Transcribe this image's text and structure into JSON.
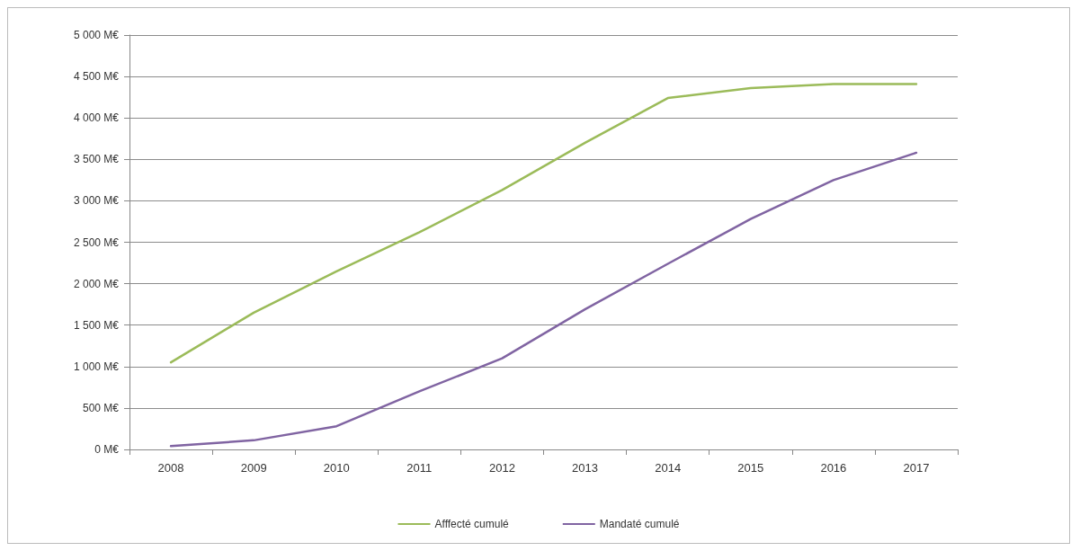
{
  "chart_data": {
    "type": "line",
    "categories": [
      "2008",
      "2009",
      "2010",
      "2011",
      "2012",
      "2013",
      "2014",
      "2015",
      "2016",
      "2017"
    ],
    "series": [
      {
        "name": "Afffecté cumulé",
        "color": "#9bbb59",
        "values": [
          1050,
          1650,
          2150,
          2620,
          3130,
          3700,
          4240,
          4360,
          4410,
          4410
        ]
      },
      {
        "name": "Mandaté cumulé",
        "color": "#8064a2",
        "values": [
          40,
          110,
          280,
          700,
          1100,
          1690,
          2240,
          2780,
          3250,
          3580
        ]
      }
    ],
    "ylim": [
      0,
      5000
    ],
    "yticks": [
      {
        "value": 0,
        "label": "0 M€"
      },
      {
        "value": 500,
        "label": "500 M€"
      },
      {
        "value": 1000,
        "label": "1 000 M€"
      },
      {
        "value": 1500,
        "label": "1 500 M€"
      },
      {
        "value": 2000,
        "label": "2 000 M€"
      },
      {
        "value": 2500,
        "label": "2 500 M€"
      },
      {
        "value": 3000,
        "label": "3 000 M€"
      },
      {
        "value": 3500,
        "label": "3 500 M€"
      },
      {
        "value": 4000,
        "label": "4 000 M€"
      },
      {
        "value": 4500,
        "label": "4 500 M€"
      },
      {
        "value": 5000,
        "label": "5 000 M€"
      }
    ],
    "grid": "y",
    "legend": "bottom",
    "marker": "none",
    "line_style": "solid"
  }
}
